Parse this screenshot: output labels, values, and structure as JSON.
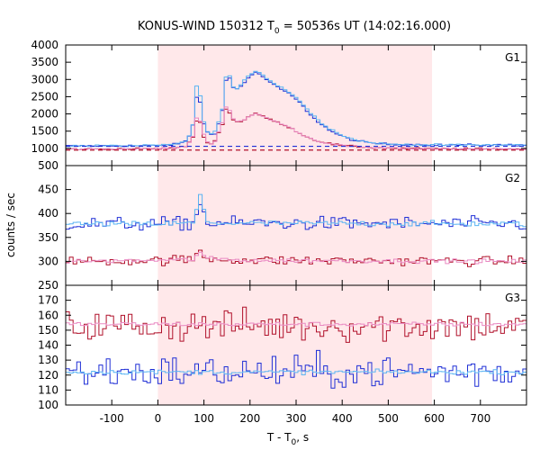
{
  "chart_data": {
    "type": "line",
    "title": {
      "main": "KONUS-WIND 150312 T",
      "sub": "0",
      "rest": " = 50536s UT (14:02:16.000)"
    },
    "xlabel": {
      "main": "T - T",
      "sub": "0",
      "rest": ", s"
    },
    "ylabel": "counts / sec",
    "xlim": [
      -200,
      800
    ],
    "x_ticks": [
      -100,
      0,
      100,
      200,
      300,
      400,
      500,
      600,
      700
    ],
    "shaded_interval": [
      0,
      595
    ],
    "bin_width": 8,
    "colors": {
      "shade": "#ffe8ea",
      "blue": "#1f2fd6",
      "light_blue": "#5ab4f2",
      "red": "#b0102a",
      "pink": "#e989c2",
      "dashed_blue": "#1f2fd6",
      "dashed_red": "#b0102a"
    },
    "panels": [
      {
        "name": "G1",
        "ylim": [
          500,
          4000
        ],
        "y_ticks": [
          500,
          1000,
          1500,
          2000,
          2500,
          3000,
          3500,
          4000
        ],
        "background": {
          "blue": 1060,
          "red": 950
        },
        "series": [
          {
            "name": "",
            "color": "blue",
            "noise": 20,
            "points": [
              [
                -200,
                1070
              ],
              [
                0,
                1080
              ],
              [
                40,
                1120
              ],
              [
                60,
                1200
              ],
              [
                72,
                1450
              ],
              [
                80,
                1900
              ],
              [
                86,
                2800
              ],
              [
                90,
                2550
              ],
              [
                96,
                1900
              ],
              [
                104,
                1500
              ],
              [
                112,
                1450
              ],
              [
                120,
                1400
              ],
              [
                128,
                1500
              ],
              [
                136,
                1900
              ],
              [
                144,
                2300
              ],
              [
                150,
                3300
              ],
              [
                158,
                2950
              ],
              [
                166,
                2700
              ],
              [
                176,
                2750
              ],
              [
                190,
                2950
              ],
              [
                200,
                3100
              ],
              [
                210,
                3200
              ],
              [
                222,
                3150
              ],
              [
                236,
                3000
              ],
              [
                250,
                2850
              ],
              [
                270,
                2700
              ],
              [
                290,
                2550
              ],
              [
                310,
                2300
              ],
              [
                330,
                2000
              ],
              [
                350,
                1750
              ],
              [
                370,
                1550
              ],
              [
                390,
                1400
              ],
              [
                410,
                1300
              ],
              [
                430,
                1220
              ],
              [
                460,
                1160
              ],
              [
                500,
                1120
              ],
              [
                560,
                1110
              ],
              [
                600,
                1100
              ],
              [
                800,
                1100
              ]
            ]
          },
          {
            "name": "",
            "color": "light_blue",
            "noise": 20,
            "points": [
              [
                -200,
                1070
              ],
              [
                0,
                1080
              ],
              [
                40,
                1120
              ],
              [
                60,
                1200
              ],
              [
                72,
                1450
              ],
              [
                80,
                1950
              ],
              [
                86,
                3250
              ],
              [
                90,
                2800
              ],
              [
                96,
                1950
              ],
              [
                104,
                1550
              ],
              [
                112,
                1450
              ],
              [
                120,
                1400
              ],
              [
                128,
                1550
              ],
              [
                136,
                1950
              ],
              [
                144,
                2400
              ],
              [
                150,
                3400
              ],
              [
                158,
                3000
              ],
              [
                166,
                2700
              ],
              [
                176,
                2750
              ],
              [
                190,
                3000
              ],
              [
                200,
                3150
              ],
              [
                210,
                3250
              ],
              [
                222,
                3200
              ],
              [
                236,
                3050
              ],
              [
                250,
                2900
              ],
              [
                270,
                2750
              ],
              [
                290,
                2600
              ],
              [
                310,
                2350
              ],
              [
                330,
                2050
              ],
              [
                350,
                1800
              ],
              [
                370,
                1600
              ],
              [
                390,
                1450
              ],
              [
                410,
                1330
              ],
              [
                430,
                1240
              ],
              [
                460,
                1170
              ],
              [
                500,
                1120
              ],
              [
                560,
                1110
              ],
              [
                600,
                1100
              ],
              [
                800,
                1100
              ]
            ]
          },
          {
            "name": "",
            "color": "red",
            "noise": 18,
            "points": [
              [
                -200,
                980
              ],
              [
                0,
                990
              ],
              [
                40,
                1010
              ],
              [
                60,
                1060
              ],
              [
                72,
                1250
              ],
              [
                80,
                1400
              ],
              [
                86,
                2000
              ],
              [
                90,
                1850
              ],
              [
                96,
                1500
              ],
              [
                104,
                1200
              ],
              [
                112,
                1150
              ],
              [
                120,
                1130
              ],
              [
                128,
                1300
              ],
              [
                136,
                1600
              ],
              [
                144,
                1800
              ],
              [
                150,
                2300
              ],
              [
                158,
                1950
              ],
              [
                166,
                1800
              ],
              [
                176,
                1750
              ],
              [
                190,
                1850
              ],
              [
                200,
                1950
              ],
              [
                212,
                2000
              ],
              [
                226,
                1950
              ],
              [
                242,
                1850
              ],
              [
                260,
                1750
              ],
              [
                280,
                1650
              ],
              [
                300,
                1500
              ],
              [
                320,
                1350
              ],
              [
                340,
                1250
              ],
              [
                360,
                1170
              ],
              [
                380,
                1120
              ],
              [
                400,
                1080
              ],
              [
                430,
                1050
              ],
              [
                470,
                1020
              ],
              [
                520,
                1000
              ],
              [
                600,
                990
              ],
              [
                800,
                980
              ]
            ]
          },
          {
            "name": "",
            "color": "pink",
            "noise": 18,
            "points": [
              [
                -200,
                980
              ],
              [
                0,
                990
              ],
              [
                40,
                1010
              ],
              [
                60,
                1060
              ],
              [
                72,
                1250
              ],
              [
                80,
                1450
              ],
              [
                86,
                2100
              ],
              [
                90,
                1900
              ],
              [
                96,
                1550
              ],
              [
                104,
                1250
              ],
              [
                112,
                1150
              ],
              [
                120,
                1130
              ],
              [
                128,
                1300
              ],
              [
                136,
                1650
              ],
              [
                144,
                1850
              ],
              [
                150,
                2400
              ],
              [
                158,
                2000
              ],
              [
                166,
                1800
              ],
              [
                176,
                1750
              ],
              [
                190,
                1850
              ],
              [
                200,
                1950
              ],
              [
                212,
                2000
              ],
              [
                226,
                1950
              ],
              [
                242,
                1850
              ],
              [
                260,
                1750
              ],
              [
                280,
                1650
              ],
              [
                300,
                1500
              ],
              [
                320,
                1350
              ],
              [
                340,
                1250
              ],
              [
                360,
                1170
              ],
              [
                380,
                1120
              ],
              [
                400,
                1080
              ],
              [
                430,
                1050
              ],
              [
                470,
                1020
              ],
              [
                520,
                1000
              ],
              [
                600,
                990
              ],
              [
                800,
                980
              ]
            ]
          }
        ]
      },
      {
        "name": "G2",
        "ylim": [
          250,
          500
        ],
        "y_ticks": [
          250,
          300,
          350,
          400,
          450
        ],
        "background": {
          "blue": null,
          "red": null
        },
        "series": [
          {
            "name": "",
            "color": "blue",
            "noise": 10,
            "points": [
              [
                -200,
                378
              ],
              [
                0,
                378
              ],
              [
                80,
                380
              ],
              [
                88,
                420
              ],
              [
                96,
                420
              ],
              [
                104,
                380
              ],
              [
                800,
                378
              ]
            ]
          },
          {
            "name": "",
            "color": "light_blue",
            "noise": 4,
            "points": [
              [
                -200,
                378
              ],
              [
                0,
                378
              ],
              [
                80,
                380
              ],
              [
                88,
                437
              ],
              [
                96,
                437
              ],
              [
                104,
                380
              ],
              [
                800,
                378
              ]
            ]
          },
          {
            "name": "",
            "color": "red",
            "noise": 7,
            "points": [
              [
                -200,
                300
              ],
              [
                0,
                302
              ],
              [
                80,
                304
              ],
              [
                88,
                322
              ],
              [
                96,
                318
              ],
              [
                104,
                306
              ],
              [
                200,
                302
              ],
              [
                800,
                300
              ]
            ]
          },
          {
            "name": "",
            "color": "pink",
            "noise": 3,
            "points": [
              [
                -200,
                300
              ],
              [
                0,
                302
              ],
              [
                80,
                304
              ],
              [
                88,
                320
              ],
              [
                96,
                318
              ],
              [
                104,
                306
              ],
              [
                200,
                302
              ],
              [
                800,
                300
              ]
            ]
          }
        ]
      },
      {
        "name": "G3",
        "ylim": [
          100,
          180
        ],
        "y_ticks": [
          100,
          110,
          120,
          130,
          140,
          150,
          160,
          170
        ],
        "background": {
          "blue": null,
          "red": null
        },
        "series": [
          {
            "name": "",
            "color": "red",
            "noise": 8,
            "points": [
              [
                -200,
                153
              ],
              [
                800,
                153
              ]
            ]
          },
          {
            "name": "",
            "color": "pink",
            "noise": 1,
            "points": [
              [
                -200,
                154
              ],
              [
                800,
                154
              ]
            ]
          },
          {
            "name": "",
            "color": "blue",
            "noise": 8,
            "points": [
              [
                -200,
                122
              ],
              [
                800,
                122
              ]
            ]
          },
          {
            "name": "",
            "color": "light_blue",
            "noise": 1,
            "points": [
              [
                -200,
                122
              ],
              [
                800,
                122
              ]
            ]
          }
        ]
      }
    ]
  }
}
